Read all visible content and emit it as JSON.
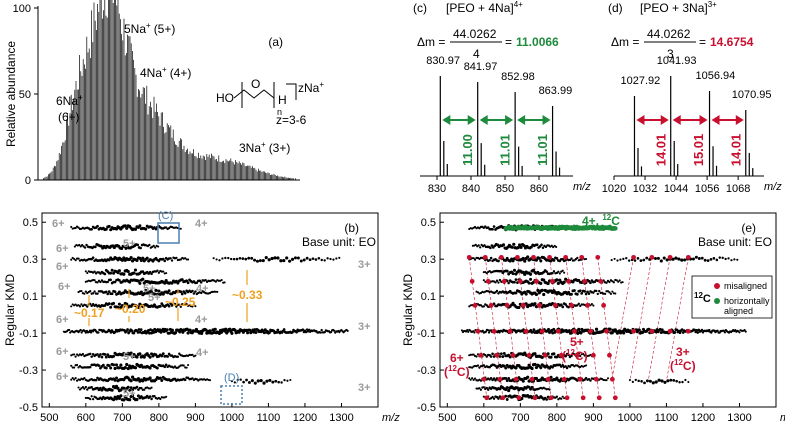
{
  "chart_data": [
    {
      "panel": "a",
      "type": "bar",
      "ylabel": "Relative abundance",
      "yticks": [
        "0",
        "50",
        "100"
      ],
      "tag": "(a)",
      "annotations": [
        {
          "ion": "5Na",
          "sup": "+",
          "charge": "(5+)"
        },
        {
          "ion": "4Na",
          "sup": "+",
          "charge": "(4+)"
        },
        {
          "ion": "6Na",
          "sup": "+",
          "charge": "(6+)"
        },
        {
          "ion": "3Na",
          "sup": "+",
          "charge": "(3+)"
        }
      ],
      "structure": {
        "ho": "HO",
        "h": "H",
        "n": "n",
        "salt": "zNa",
        "sup": "+",
        "z": "z=3-6"
      }
    },
    {
      "panel": "c",
      "type": "bar",
      "title": "[PEO + 4Na]",
      "title_sup": "4+",
      "tag": "(c)",
      "delta_label": "Δm =",
      "numerator": "44.0262",
      "denominator": "4",
      "equals": "=",
      "result": "11.0066",
      "peaks": [
        {
          "mz": 830.97,
          "label": "830.97",
          "rel": 1.0
        },
        {
          "mz": 841.97,
          "label": "841.97",
          "rel": 0.94
        },
        {
          "mz": 852.98,
          "label": "852.98",
          "rel": 0.84
        },
        {
          "mz": 863.99,
          "label": "863.99",
          "rel": 0.7
        }
      ],
      "spacings": [
        "11.00",
        "11.01",
        "11.01"
      ],
      "xticks": [
        "830",
        "840",
        "850",
        "860"
      ],
      "xlabel": "m/z",
      "xlim": [
        825,
        870
      ]
    },
    {
      "panel": "d",
      "type": "bar",
      "title": "[PEO + 3Na]",
      "title_sup": "3+",
      "tag": "(d)",
      "delta_label": "Δm =",
      "numerator": "44.0262",
      "denominator": "3",
      "equals": "=",
      "result": "14.6754",
      "peaks": [
        {
          "mz": 1027.92,
          "label": "1027.92",
          "rel": 0.8
        },
        {
          "mz": 1041.93,
          "label": "1041.93",
          "rel": 1.0
        },
        {
          "mz": 1056.94,
          "label": "1056.94",
          "rel": 0.85
        },
        {
          "mz": 1070.95,
          "label": "1070.95",
          "rel": 0.66
        }
      ],
      "spacings": [
        "14.01",
        "15.01",
        "14.01"
      ],
      "xticks": [
        "1020",
        "1032",
        "1044",
        "1056",
        "1068"
      ],
      "xlabel": "m/z",
      "xlim": [
        1020,
        1078
      ]
    },
    {
      "panel": "b",
      "type": "scatter",
      "tag": "(b)",
      "base_unit": "Base unit: EO",
      "ylabel": "Regular KMD",
      "yticks": [
        "0.5",
        "0.3",
        "0.1",
        "-0.1",
        "-0.3",
        "-0.5"
      ],
      "xticks": [
        "500",
        "600",
        "700",
        "800",
        "900",
        "1000",
        "1100",
        "1200",
        "1300"
      ],
      "xlabel": "m/z",
      "xlim": [
        480,
        1400
      ],
      "ylim": [
        -0.5,
        0.55
      ],
      "charge_labels": [
        "6+",
        "5+",
        "4+",
        "3+"
      ],
      "boxes": [
        "(C)",
        "(D)"
      ],
      "gaps": [
        "~0.17",
        "~0.20",
        "~0.25",
        "~0.33"
      ]
    },
    {
      "panel": "e",
      "type": "scatter",
      "tag": "(e)",
      "base_unit": "Base unit: EO",
      "ylabel": "Regular KMD",
      "yticks": [
        "0.5",
        "0.3",
        "0.1",
        "-0.1",
        "-0.3",
        "-0.5"
      ],
      "xticks": [
        "500",
        "600",
        "700",
        "800",
        "900",
        "1000",
        "1100",
        "1200",
        "1300"
      ],
      "xlabel": "m/z",
      "xlim": [
        480,
        1400
      ],
      "ylim": [
        -0.5,
        0.55
      ],
      "series_labels": {
        "green": "4+, ",
        "green_iso": "12",
        "green_c": "C",
        "s5": "5+",
        "s5b": "(",
        "s6": "6+",
        "s3": "3+"
      },
      "legend": {
        "iso": "12",
        "c": "C",
        "misaligned": "misaligned",
        "aligned1": "horizontally",
        "aligned2": "aligned"
      }
    }
  ],
  "colors": {
    "red": "#c8102e",
    "green": "#1e8a3c",
    "orange": "#f0a020",
    "gray": "#9a9a9a",
    "blue": "#4a7fb0"
  }
}
